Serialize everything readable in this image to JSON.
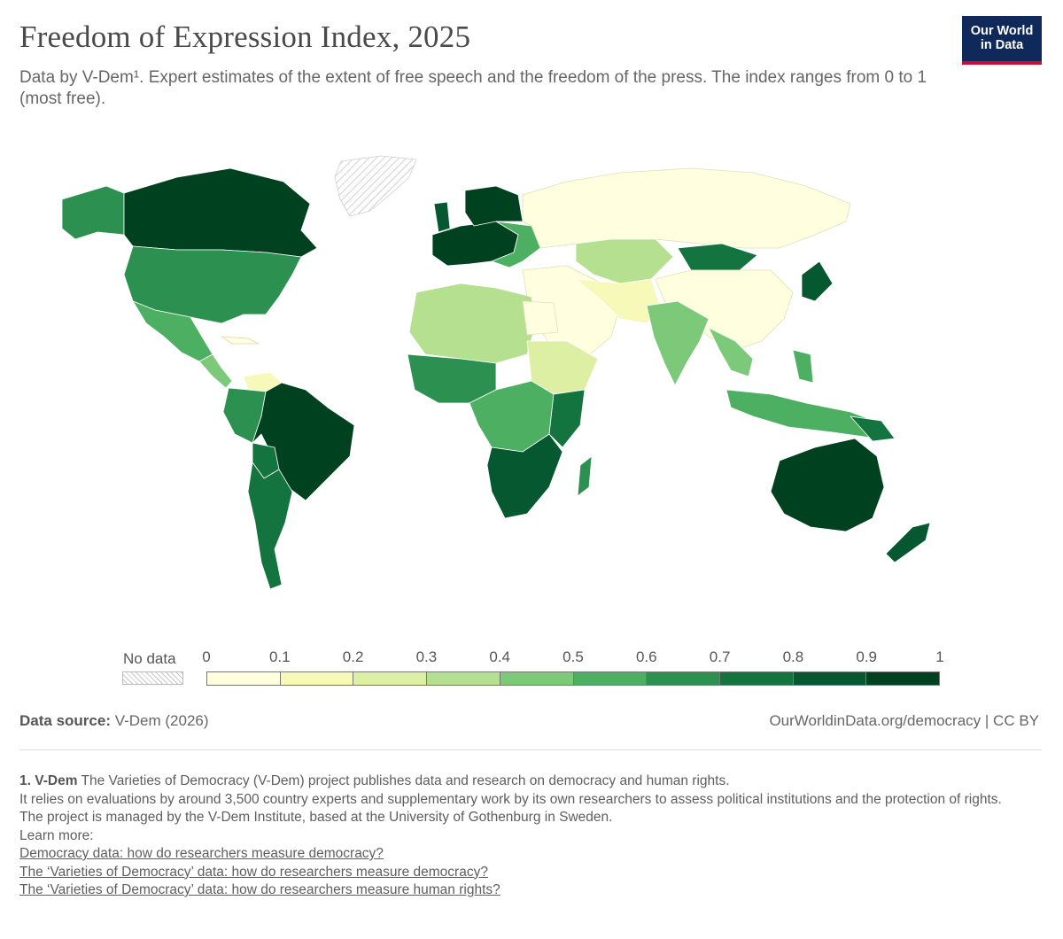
{
  "header": {
    "title": "Freedom of Expression Index, 2025",
    "subtitle": "Data by V-Dem¹. Expert estimates of the extent of free speech and the freedom of the press. The index ranges from 0 to 1 (most free).",
    "logo_line1": "Our World",
    "logo_line2": "in Data"
  },
  "legend": {
    "no_data_label": "No data",
    "ticks": [
      "0",
      "0.1",
      "0.2",
      "0.3",
      "0.4",
      "0.5",
      "0.6",
      "0.7",
      "0.8",
      "0.9",
      "1"
    ],
    "bin_colors": [
      "#ffffe0",
      "#f7f9b8",
      "#dcefa2",
      "#b4e08f",
      "#7cc97a",
      "#4daf62",
      "#2c9150",
      "#137440",
      "#05582f",
      "#00421f"
    ]
  },
  "chart_data": {
    "type": "choropleth",
    "scale": {
      "min": 0,
      "max": 1,
      "bins": 10
    },
    "no_data_color": "hatched-gray"
  },
  "footer": {
    "source_label": "Data source:",
    "source_value": "V-Dem (2026)",
    "credit": "OurWorldinData.org/democracy | CC BY"
  },
  "footnote": {
    "marker": "1. V-Dem",
    "line1": "The Varieties of Democracy (V-Dem) project publishes data and research on democracy and human rights.",
    "line2": "It relies on evaluations by around 3,500 country experts and supplementary work by its own researchers to assess political institutions and the protection of rights.",
    "line3": "The project is managed by the V-Dem Institute, based at the University of Gothenburg in Sweden.",
    "learn_more": "Learn more:",
    "links": [
      "Democracy data: how do researchers measure democracy?",
      "The ‘Varieties of Democracy’ data: how do researchers measure democracy?",
      "The ‘Varieties of Democracy’ data: how do researchers measure human rights?"
    ]
  }
}
